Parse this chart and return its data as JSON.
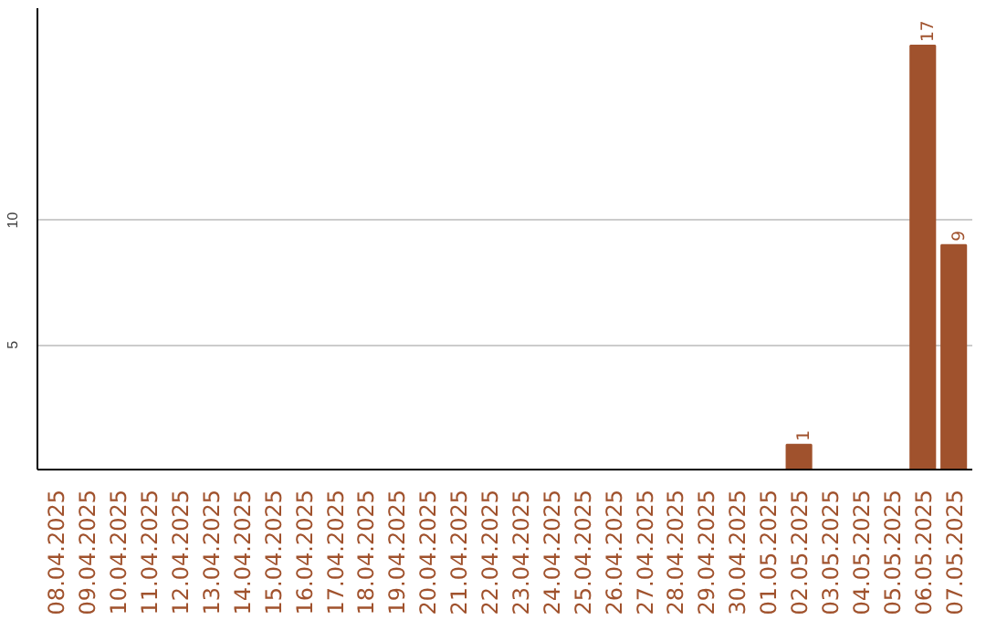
{
  "chart_data": {
    "type": "bar",
    "categories": [
      "08.04.2025",
      "09.04.2025",
      "10.04.2025",
      "11.04.2025",
      "12.04.2025",
      "13.04.2025",
      "14.04.2025",
      "15.04.2025",
      "16.04.2025",
      "17.04.2025",
      "18.04.2025",
      "19.04.2025",
      "20.04.2025",
      "21.04.2025",
      "22.04.2025",
      "23.04.2025",
      "24.04.2025",
      "25.04.2025",
      "26.04.2025",
      "27.04.2025",
      "28.04.2025",
      "29.04.2025",
      "30.04.2025",
      "01.05.2025",
      "02.05.2025",
      "03.05.2025",
      "04.05.2025",
      "05.05.2025",
      "06.05.2025",
      "07.05.2025"
    ],
    "values": [
      0,
      0,
      0,
      0,
      0,
      0,
      0,
      0,
      0,
      0,
      0,
      0,
      0,
      0,
      0,
      0,
      0,
      0,
      0,
      0,
      0,
      0,
      0,
      0,
      1,
      0,
      0,
      0,
      17,
      9
    ],
    "value_labels": [
      null,
      null,
      null,
      null,
      null,
      null,
      null,
      null,
      null,
      null,
      null,
      null,
      null,
      null,
      null,
      null,
      null,
      null,
      null,
      null,
      null,
      null,
      null,
      null,
      "1",
      null,
      null,
      null,
      "17",
      "9"
    ],
    "color": "#a0522d",
    "ylim": [
      0,
      18.5
    ],
    "yticks": [
      5,
      10
    ],
    "grid": "y"
  }
}
